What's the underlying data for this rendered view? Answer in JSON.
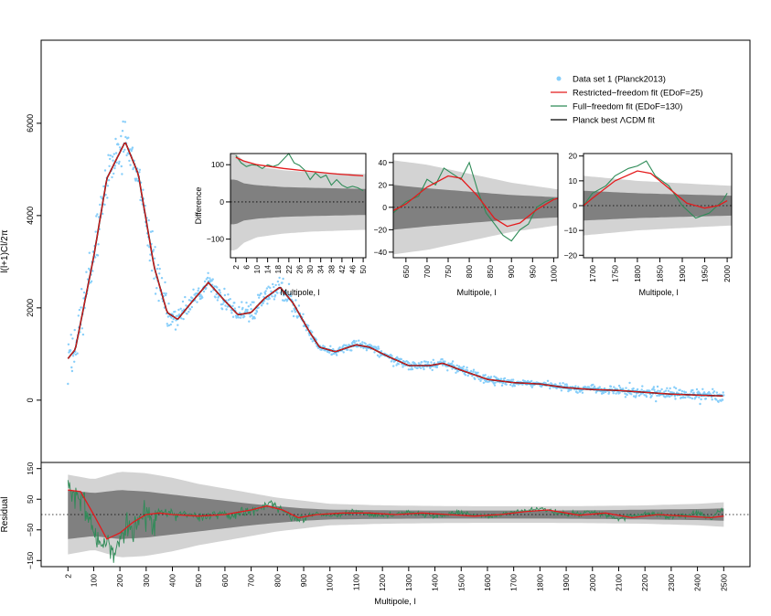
{
  "colors": {
    "data": "#87cefa",
    "restricted": "#e41a1c",
    "full": "#2e8b57",
    "planck": "#000000",
    "band_outer": "#d3d3d3",
    "band_inner": "#808080"
  },
  "chart_data": [
    {
      "id": "main",
      "type": "scatter",
      "ylabel": "l(l+1)Cl/2π",
      "xlim": [
        -100,
        2600
      ],
      "ylim": [
        -1350,
        7800
      ],
      "yticks": [
        0,
        2000,
        4000,
        6000
      ],
      "peaks": [
        [
          2,
          900
        ],
        [
          30,
          1100
        ],
        [
          100,
          3100
        ],
        [
          150,
          4800
        ],
        [
          220,
          5600
        ],
        [
          270,
          4900
        ],
        [
          330,
          2900
        ],
        [
          380,
          1900
        ],
        [
          420,
          1750
        ],
        [
          470,
          2100
        ],
        [
          537,
          2550
        ],
        [
          600,
          2150
        ],
        [
          650,
          1850
        ],
        [
          700,
          1900
        ],
        [
          750,
          2200
        ],
        [
          810,
          2450
        ],
        [
          860,
          2100
        ],
        [
          920,
          1500
        ],
        [
          960,
          1150
        ],
        [
          1020,
          1050
        ],
        [
          1100,
          1200
        ],
        [
          1150,
          1150
        ],
        [
          1220,
          950
        ],
        [
          1300,
          750
        ],
        [
          1380,
          750
        ],
        [
          1430,
          800
        ],
        [
          1500,
          650
        ],
        [
          1600,
          450
        ],
        [
          1700,
          380
        ],
        [
          1800,
          350
        ],
        [
          1900,
          270
        ],
        [
          2000,
          230
        ],
        [
          2100,
          210
        ],
        [
          2200,
          170
        ],
        [
          2300,
          130
        ],
        [
          2400,
          110
        ],
        [
          2500,
          90
        ]
      ],
      "legend": {
        "position": "top-right",
        "entries": [
          {
            "label": "Data set 1 (Planck2013)",
            "color_key": "data",
            "marker": "point"
          },
          {
            "label": "Restricted−freedom fit (EDoF=25)",
            "color_key": "restricted",
            "marker": "line"
          },
          {
            "label": "Full−freedom fit (EDoF=130)",
            "color_key": "full",
            "marker": "line"
          },
          {
            "label": "Planck best ΛCDM fit",
            "color_key": "planck",
            "marker": "line"
          }
        ]
      }
    },
    {
      "id": "inset1",
      "type": "line",
      "xlabel": "Multipole, l",
      "ylabel": "Difference",
      "xlim": [
        0,
        51
      ],
      "ylim": [
        -150,
        130
      ],
      "xticks": [
        2,
        6,
        10,
        14,
        18,
        22,
        26,
        30,
        34,
        38,
        42,
        46,
        50
      ],
      "yticks": [
        -100,
        0,
        100
      ],
      "outer_band": [
        [
          2,
          130
        ],
        [
          5,
          110
        ],
        [
          10,
          95
        ],
        [
          20,
          85
        ],
        [
          30,
          80
        ],
        [
          50,
          75
        ]
      ],
      "inner_band": [
        [
          2,
          60
        ],
        [
          5,
          50
        ],
        [
          10,
          45
        ],
        [
          20,
          40
        ],
        [
          30,
          38
        ],
        [
          50,
          35
        ]
      ],
      "restricted": [
        [
          2,
          120
        ],
        [
          5,
          110
        ],
        [
          10,
          100
        ],
        [
          20,
          90
        ],
        [
          30,
          82
        ],
        [
          40,
          75
        ],
        [
          50,
          70
        ]
      ],
      "full": [
        [
          2,
          125
        ],
        [
          4,
          105
        ],
        [
          6,
          95
        ],
        [
          8,
          100
        ],
        [
          10,
          98
        ],
        [
          12,
          90
        ],
        [
          14,
          100
        ],
        [
          16,
          95
        ],
        [
          18,
          100
        ],
        [
          20,
          115
        ],
        [
          22,
          130
        ],
        [
          24,
          105
        ],
        [
          26,
          98
        ],
        [
          28,
          85
        ],
        [
          30,
          60
        ],
        [
          32,
          78
        ],
        [
          34,
          65
        ],
        [
          36,
          72
        ],
        [
          38,
          45
        ],
        [
          40,
          60
        ],
        [
          42,
          45
        ],
        [
          44,
          38
        ],
        [
          46,
          42
        ],
        [
          48,
          38
        ],
        [
          50,
          30
        ]
      ]
    },
    {
      "id": "inset2",
      "type": "line",
      "xlabel": "Multipole, l",
      "xlim": [
        620,
        1010
      ],
      "ylim": [
        -45,
        48
      ],
      "xticks": [
        650,
        700,
        750,
        800,
        850,
        900,
        950,
        1000
      ],
      "yticks": [
        -40,
        -20,
        0,
        20,
        40
      ],
      "outer_band": [
        [
          620,
          42
        ],
        [
          700,
          38
        ],
        [
          800,
          30
        ],
        [
          900,
          22
        ],
        [
          1010,
          16
        ]
      ],
      "inner_band": [
        [
          620,
          20
        ],
        [
          700,
          17
        ],
        [
          800,
          14
        ],
        [
          900,
          11
        ],
        [
          1010,
          9
        ]
      ],
      "restricted": [
        [
          620,
          -3
        ],
        [
          650,
          3
        ],
        [
          700,
          18
        ],
        [
          750,
          28
        ],
        [
          780,
          26
        ],
        [
          820,
          10
        ],
        [
          860,
          -10
        ],
        [
          890,
          -17
        ],
        [
          920,
          -14
        ],
        [
          960,
          -2
        ],
        [
          1000,
          7
        ],
        [
          1010,
          8
        ]
      ],
      "full": [
        [
          620,
          -5
        ],
        [
          650,
          5
        ],
        [
          680,
          10
        ],
        [
          700,
          25
        ],
        [
          720,
          20
        ],
        [
          740,
          35
        ],
        [
          760,
          30
        ],
        [
          780,
          25
        ],
        [
          800,
          40
        ],
        [
          820,
          15
        ],
        [
          840,
          -5
        ],
        [
          860,
          -15
        ],
        [
          880,
          -25
        ],
        [
          900,
          -30
        ],
        [
          920,
          -20
        ],
        [
          940,
          -15
        ],
        [
          960,
          0
        ],
        [
          980,
          5
        ],
        [
          1000,
          8
        ]
      ]
    },
    {
      "id": "inset3",
      "type": "line",
      "xlabel": "Multipole, l",
      "xlim": [
        1680,
        2010
      ],
      "ylim": [
        -21,
        21
      ],
      "xticks": [
        1700,
        1750,
        1800,
        1850,
        1900,
        1950,
        2000
      ],
      "yticks": [
        -20,
        -10,
        0,
        10,
        20
      ],
      "outer_band": [
        [
          1680,
          12
        ],
        [
          1800,
          10
        ],
        [
          1900,
          9
        ],
        [
          2010,
          8
        ]
      ],
      "inner_band": [
        [
          1680,
          6
        ],
        [
          1800,
          5
        ],
        [
          1900,
          4.5
        ],
        [
          2010,
          4
        ]
      ],
      "restricted": [
        [
          1680,
          0
        ],
        [
          1700,
          3
        ],
        [
          1750,
          10
        ],
        [
          1800,
          14
        ],
        [
          1830,
          13
        ],
        [
          1870,
          7
        ],
        [
          1910,
          1
        ],
        [
          1950,
          -1
        ],
        [
          1980,
          0
        ],
        [
          2000,
          2
        ]
      ],
      "full": [
        [
          1680,
          0
        ],
        [
          1700,
          5
        ],
        [
          1730,
          8
        ],
        [
          1750,
          12
        ],
        [
          1780,
          15
        ],
        [
          1800,
          16
        ],
        [
          1820,
          18
        ],
        [
          1840,
          12
        ],
        [
          1870,
          8
        ],
        [
          1900,
          0
        ],
        [
          1930,
          -5
        ],
        [
          1960,
          -3
        ],
        [
          1990,
          2
        ],
        [
          2000,
          5
        ]
      ]
    },
    {
      "id": "residual",
      "type": "line",
      "xlabel": "Multipole, l",
      "ylabel": "Residual",
      "xlim": [
        -100,
        2600
      ],
      "ylim": [
        -170,
        170
      ],
      "xticks": [
        2,
        100,
        200,
        300,
        400,
        500,
        600,
        700,
        800,
        900,
        1000,
        1100,
        1200,
        1300,
        1400,
        1500,
        1600,
        1700,
        1800,
        1900,
        2000,
        2100,
        2200,
        2300,
        2400,
        2500
      ],
      "yticks": [
        -150,
        -50,
        50,
        150
      ],
      "outer_band": [
        [
          2,
          130
        ],
        [
          100,
          115
        ],
        [
          200,
          140
        ],
        [
          300,
          135
        ],
        [
          400,
          120
        ],
        [
          500,
          100
        ],
        [
          600,
          85
        ],
        [
          700,
          70
        ],
        [
          800,
          55
        ],
        [
          900,
          45
        ],
        [
          1000,
          35
        ],
        [
          1200,
          30
        ],
        [
          1400,
          28
        ],
        [
          1600,
          27
        ],
        [
          1800,
          27
        ],
        [
          2000,
          28
        ],
        [
          2200,
          30
        ],
        [
          2400,
          35
        ],
        [
          2500,
          40
        ]
      ],
      "inner_band": [
        [
          2,
          80
        ],
        [
          100,
          70
        ],
        [
          200,
          80
        ],
        [
          300,
          75
        ],
        [
          400,
          65
        ],
        [
          500,
          55
        ],
        [
          600,
          45
        ],
        [
          700,
          35
        ],
        [
          800,
          27
        ],
        [
          900,
          20
        ],
        [
          1000,
          16
        ],
        [
          1200,
          14
        ],
        [
          1400,
          13
        ],
        [
          1600,
          13
        ],
        [
          1800,
          13
        ],
        [
          2000,
          14
        ],
        [
          2200,
          16
        ],
        [
          2400,
          18
        ],
        [
          2500,
          20
        ]
      ],
      "restricted": [
        [
          2,
          80
        ],
        [
          50,
          75
        ],
        [
          100,
          0
        ],
        [
          150,
          -80
        ],
        [
          200,
          -60
        ],
        [
          250,
          -25
        ],
        [
          300,
          0
        ],
        [
          350,
          5
        ],
        [
          400,
          0
        ],
        [
          500,
          -5
        ],
        [
          600,
          0
        ],
        [
          700,
          15
        ],
        [
          760,
          28
        ],
        [
          820,
          15
        ],
        [
          880,
          -10
        ],
        [
          950,
          0
        ],
        [
          1050,
          5
        ],
        [
          1150,
          5
        ],
        [
          1250,
          0
        ],
        [
          1350,
          5
        ],
        [
          1450,
          0
        ],
        [
          1550,
          -5
        ],
        [
          1650,
          0
        ],
        [
          1750,
          10
        ],
        [
          1830,
          15
        ],
        [
          1900,
          5
        ],
        [
          1950,
          -2
        ],
        [
          2050,
          5
        ],
        [
          2150,
          -10
        ],
        [
          2250,
          0
        ],
        [
          2350,
          -5
        ],
        [
          2450,
          -10
        ],
        [
          2500,
          -5
        ]
      ],
      "full": [
        [
          2,
          90
        ],
        [
          30,
          60
        ],
        [
          60,
          40
        ],
        [
          90,
          -20
        ],
        [
          120,
          -110
        ],
        [
          150,
          -80
        ],
        [
          180,
          -130
        ],
        [
          210,
          -40
        ],
        [
          240,
          -60
        ],
        [
          270,
          -20
        ],
        [
          300,
          10
        ],
        [
          330,
          -10
        ],
        [
          360,
          15
        ],
        [
          400,
          -5
        ],
        [
          450,
          10
        ],
        [
          500,
          -10
        ],
        [
          560,
          5
        ],
        [
          620,
          -5
        ],
        [
          680,
          10
        ],
        [
          730,
          20
        ],
        [
          770,
          40
        ],
        [
          800,
          25
        ],
        [
          850,
          -5
        ],
        [
          900,
          -15
        ],
        [
          950,
          5
        ],
        [
          1000,
          -5
        ],
        [
          1100,
          10
        ],
        [
          1200,
          -5
        ],
        [
          1300,
          8
        ],
        [
          1400,
          -5
        ],
        [
          1500,
          5
        ],
        [
          1600,
          -8
        ],
        [
          1700,
          8
        ],
        [
          1800,
          18
        ],
        [
          1900,
          0
        ],
        [
          2000,
          8
        ],
        [
          2100,
          -15
        ],
        [
          2200,
          5
        ],
        [
          2300,
          -10
        ],
        [
          2400,
          5
        ],
        [
          2450,
          -15
        ],
        [
          2500,
          20
        ]
      ]
    }
  ]
}
